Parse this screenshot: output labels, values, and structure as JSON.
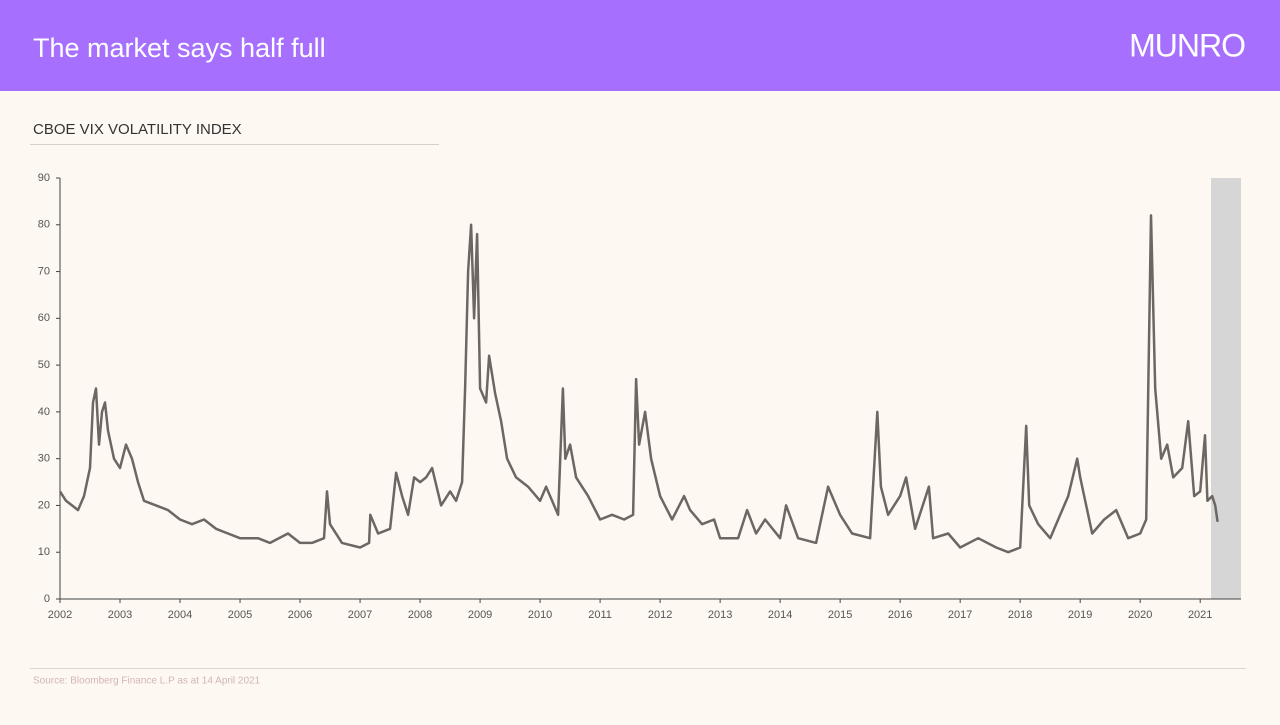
{
  "header": {
    "title": "The market says half full",
    "logo": "MUNRO"
  },
  "chart_data": {
    "type": "line",
    "title": "CBOE VIX VOLATILITY  INDEX",
    "x": [
      2002.0,
      2002.1,
      2002.2,
      2002.3,
      2002.4,
      2002.5,
      2002.55,
      2002.6,
      2002.65,
      2002.7,
      2002.75,
      2002.8,
      2002.9,
      2003.0,
      2003.1,
      2003.2,
      2003.3,
      2003.4,
      2003.6,
      2003.8,
      2004.0,
      2004.2,
      2004.4,
      2004.6,
      2004.8,
      2005.0,
      2005.3,
      2005.5,
      2005.8,
      2006.0,
      2006.2,
      2006.4,
      2006.45,
      2006.5,
      2006.7,
      2007.0,
      2007.15,
      2007.17,
      2007.3,
      2007.5,
      2007.6,
      2007.7,
      2007.8,
      2007.9,
      2008.0,
      2008.1,
      2008.2,
      2008.35,
      2008.5,
      2008.6,
      2008.7,
      2008.75,
      2008.8,
      2008.85,
      2008.9,
      2008.95,
      2009.0,
      2009.1,
      2009.15,
      2009.25,
      2009.35,
      2009.45,
      2009.6,
      2009.8,
      2010.0,
      2010.1,
      2010.3,
      2010.38,
      2010.42,
      2010.5,
      2010.6,
      2010.8,
      2011.0,
      2011.2,
      2011.4,
      2011.55,
      2011.6,
      2011.65,
      2011.75,
      2011.85,
      2012.0,
      2012.2,
      2012.4,
      2012.5,
      2012.7,
      2012.9,
      2013.0,
      2013.3,
      2013.45,
      2013.6,
      2013.75,
      2014.0,
      2014.1,
      2014.3,
      2014.6,
      2014.8,
      2015.0,
      2015.2,
      2015.5,
      2015.62,
      2015.68,
      2015.8,
      2016.0,
      2016.1,
      2016.25,
      2016.48,
      2016.55,
      2016.8,
      2017.0,
      2017.3,
      2017.6,
      2017.8,
      2018.0,
      2018.1,
      2018.15,
      2018.3,
      2018.5,
      2018.8,
      2018.95,
      2019.0,
      2019.2,
      2019.4,
      2019.6,
      2019.8,
      2020.0,
      2020.1,
      2020.18,
      2020.25,
      2020.35,
      2020.45,
      2020.55,
      2020.7,
      2020.8,
      2020.9,
      2021.0,
      2021.08,
      2021.12,
      2021.2,
      2021.25,
      2021.29
    ],
    "values": [
      23,
      21,
      20,
      19,
      22,
      28,
      42,
      45,
      33,
      40,
      42,
      36,
      30,
      28,
      33,
      30,
      25,
      21,
      20,
      19,
      17,
      16,
      17,
      15,
      14,
      13,
      13,
      12,
      14,
      12,
      12,
      13,
      23,
      16,
      12,
      11,
      12,
      18,
      14,
      15,
      27,
      22,
      18,
      26,
      25,
      26,
      28,
      20,
      23,
      21,
      25,
      45,
      70,
      80,
      60,
      78,
      45,
      42,
      52,
      44,
      38,
      30,
      26,
      24,
      21,
      24,
      18,
      45,
      30,
      33,
      26,
      22,
      17,
      18,
      17,
      18,
      47,
      33,
      40,
      30,
      22,
      17,
      22,
      19,
      16,
      17,
      13,
      13,
      19,
      14,
      17,
      13,
      20,
      13,
      12,
      24,
      18,
      14,
      13,
      40,
      24,
      18,
      22,
      26,
      15,
      24,
      13,
      14,
      11,
      13,
      11,
      10,
      11,
      37,
      20,
      16,
      13,
      22,
      30,
      26,
      14,
      17,
      19,
      13,
      14,
      17,
      82,
      45,
      30,
      33,
      26,
      28,
      38,
      22,
      23,
      35,
      21,
      22,
      20,
      16.5
    ],
    "color": "#6d6763",
    "xlim": [
      2002,
      2021.68
    ],
    "xticks": [
      2002,
      2003,
      2004,
      2005,
      2006,
      2007,
      2008,
      2009,
      2010,
      2011,
      2012,
      2013,
      2014,
      2015,
      2016,
      2017,
      2018,
      2019,
      2020,
      2021
    ],
    "ylim": [
      0,
      90
    ],
    "yticks": [
      0,
      10,
      20,
      30,
      40,
      50,
      60,
      70,
      80,
      90
    ],
    "highlight_range": [
      2021.18,
      2021.68
    ],
    "highlight_color": "#d6d6d6"
  },
  "source": "Source: Bloomberg Finance L.P as at 14 April 2021"
}
